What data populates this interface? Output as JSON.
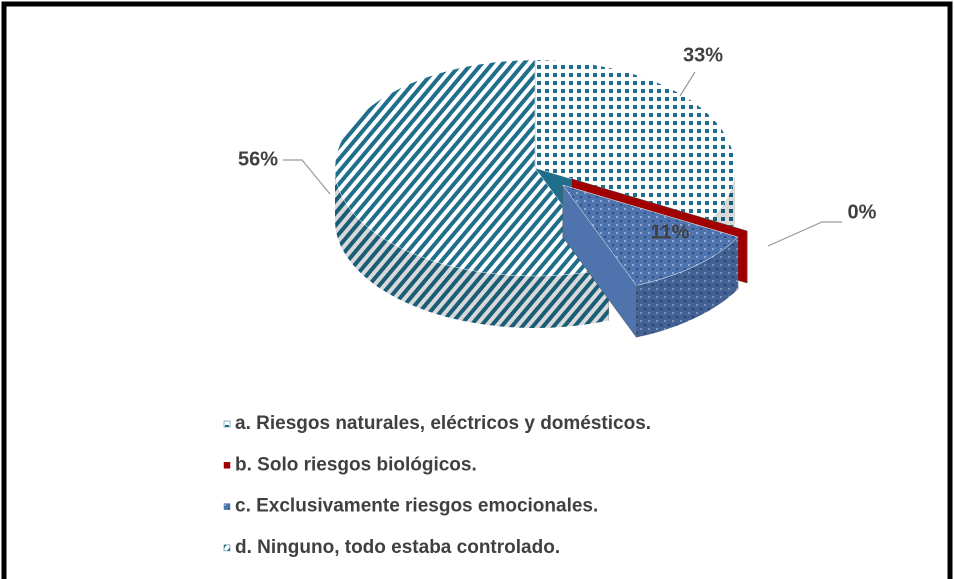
{
  "chart_data": {
    "type": "pie",
    "categories": [
      "a. Riesgos naturales, eléctricos y domésticos.",
      "b. Solo riesgos biológicos.",
      "c. Exclusivamente riesgos emocionales.",
      "d. Ninguno, todo estaba controlado."
    ],
    "values": [
      33,
      0,
      11,
      56
    ],
    "value_labels": [
      "33%",
      "0%",
      "11%",
      "56%"
    ],
    "colors": [
      "#1f6e8c",
      "#a00000",
      "#4f74ad",
      "#1f6e8c"
    ],
    "exploded": [
      false,
      true,
      true,
      false
    ],
    "legend": "bottom"
  }
}
